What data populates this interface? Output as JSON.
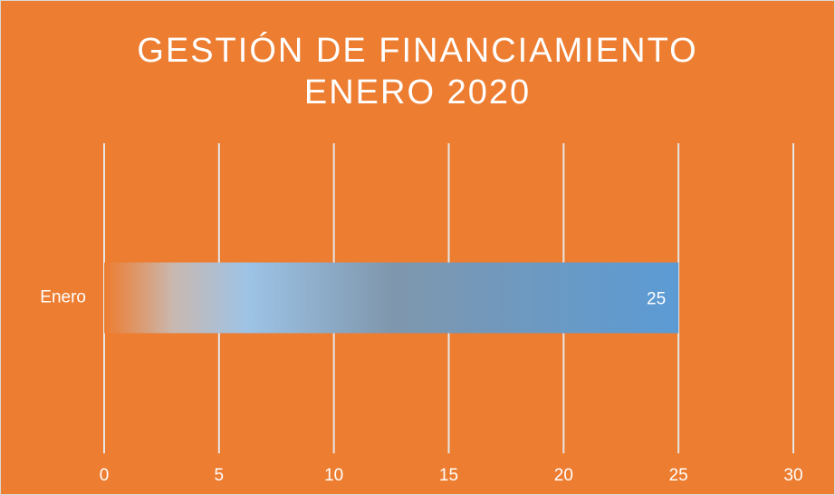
{
  "chart_data": {
    "type": "hbar",
    "title": [
      "GESTIÓN DE FINANCIAMIENTO",
      "ENERO 2020"
    ],
    "categories": [
      "Enero"
    ],
    "values": [
      25
    ],
    "color": "#5b9bd5",
    "xlim": [
      0,
      30
    ],
    "xticks": [
      0,
      5,
      10,
      15,
      20,
      25,
      30
    ],
    "grid": true
  }
}
